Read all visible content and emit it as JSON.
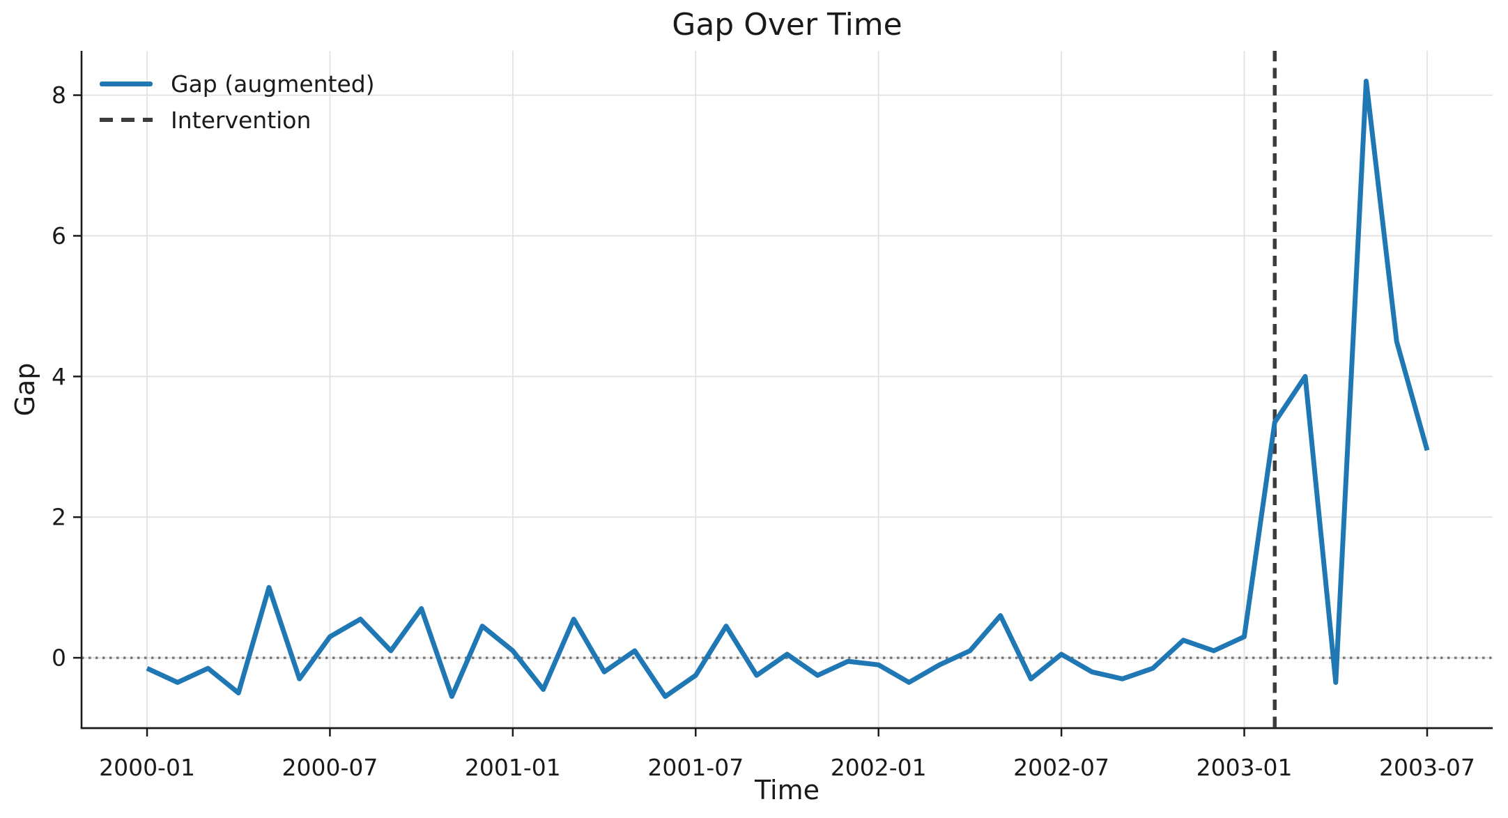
{
  "chart_data": {
    "type": "line",
    "title": "Gap Over Time",
    "xlabel": "Time",
    "ylabel": "Gap",
    "x": [
      "2000-01",
      "2000-02",
      "2000-03",
      "2000-04",
      "2000-05",
      "2000-06",
      "2000-07",
      "2000-08",
      "2000-09",
      "2000-10",
      "2000-11",
      "2000-12",
      "2001-01",
      "2001-02",
      "2001-03",
      "2001-04",
      "2001-05",
      "2001-06",
      "2001-07",
      "2001-08",
      "2001-09",
      "2001-10",
      "2001-11",
      "2001-12",
      "2002-01",
      "2002-02",
      "2002-03",
      "2002-04",
      "2002-05",
      "2002-06",
      "2002-07",
      "2002-08",
      "2002-09",
      "2002-10",
      "2002-11",
      "2002-12",
      "2003-01",
      "2003-02",
      "2003-03",
      "2003-04",
      "2003-05",
      "2003-06",
      "2003-07"
    ],
    "series": [
      {
        "name": "Gap (augmented)",
        "color": "#1f77b4",
        "values": [
          -0.15,
          -0.35,
          -0.15,
          -0.5,
          1.0,
          -0.3,
          0.3,
          0.55,
          0.1,
          0.7,
          -0.55,
          0.45,
          0.1,
          -0.45,
          0.55,
          -0.2,
          0.1,
          -0.55,
          -0.25,
          0.45,
          -0.25,
          0.05,
          -0.25,
          -0.05,
          -0.1,
          -0.35,
          -0.1,
          0.1,
          0.6,
          -0.3,
          0.05,
          -0.2,
          -0.3,
          -0.15,
          0.25,
          0.1,
          0.3,
          3.35,
          4.0,
          -0.35,
          8.2,
          4.5,
          2.95
        ]
      }
    ],
    "reference_lines": {
      "intervention": {
        "label": "Intervention",
        "x": "2003-02",
        "orientation": "vertical",
        "style": "dashed",
        "color": "#3d3d3d"
      },
      "zero": {
        "y": 0,
        "orientation": "horizontal",
        "style": "dotted",
        "color": "#787878"
      }
    },
    "x_ticks": [
      {
        "label": "2000-01",
        "index": 0
      },
      {
        "label": "2000-07",
        "index": 6
      },
      {
        "label": "2001-01",
        "index": 12
      },
      {
        "label": "2001-07",
        "index": 18
      },
      {
        "label": "2002-01",
        "index": 24
      },
      {
        "label": "2002-07",
        "index": 30
      },
      {
        "label": "2003-01",
        "index": 36
      },
      {
        "label": "2003-07",
        "index": 42
      }
    ],
    "y_ticks": [
      0,
      2,
      4,
      6,
      8
    ],
    "ylim": [
      -1.0,
      8.63
    ],
    "xlim_index": [
      -2.15,
      44.15
    ],
    "grid": true,
    "legend": {
      "position": "upper-left",
      "items": [
        "Gap (augmented)",
        "Intervention"
      ]
    },
    "colors": {
      "series_line": "#1f77b4",
      "intervention_line": "#3d3d3d",
      "zero_line": "#787878",
      "grid_line": "#e2e2e2",
      "axis": "#1a1a1a"
    }
  }
}
